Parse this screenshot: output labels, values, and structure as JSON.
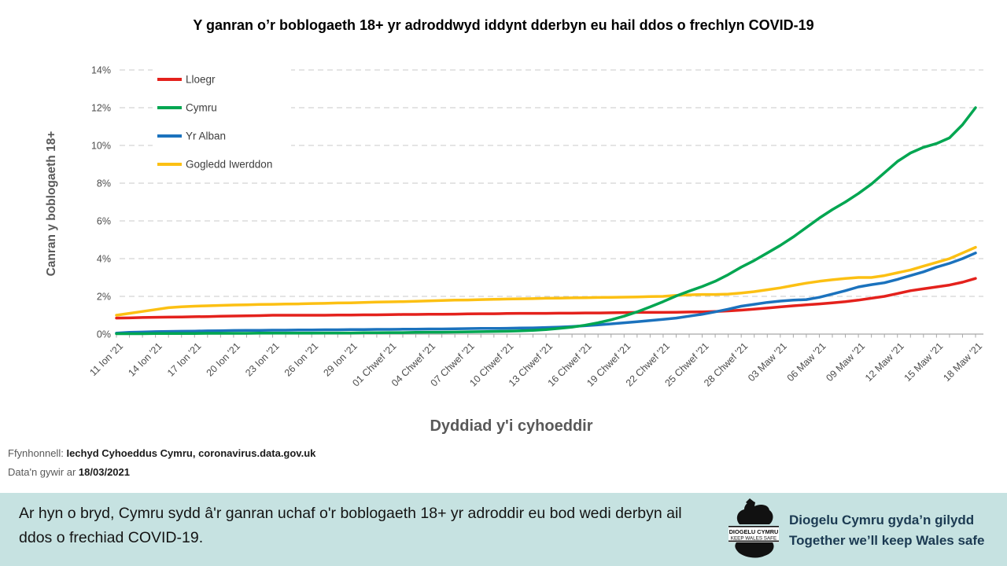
{
  "title": "Y ganran o’r boblogaeth 18+ yr adroddwyd iddynt dderbyn eu hail ddos o frechlyn COVID-19",
  "chart_data": {
    "type": "line",
    "title": "Y ganran o’r boblogaeth 18+ yr adroddwyd iddynt dderbyn eu hail ddos o frechlyn COVID-19",
    "xlabel": "Dyddiad y'i cyhoeddir",
    "ylabel": "Canran y boblogaeth 18+",
    "ylim": [
      0,
      14
    ],
    "ytick_labels": [
      "0%",
      "2%",
      "4%",
      "6%",
      "8%",
      "10%",
      "12%",
      "14%"
    ],
    "grid": "horizontal-dashed",
    "legend_position": "top-left-inside",
    "x_points_per_label": 3,
    "x_tick_labels": [
      "11 Ion '21",
      "14 Ion '21",
      "17 Ion '21",
      "20 Ion '21",
      "23 Ion '21",
      "26 Ion '21",
      "29 Ion '21",
      "01 Chwef '21",
      "04 Chwef '21",
      "07 Chwef '21",
      "10 Chwef '21",
      "13 Chwef '21",
      "16 Chwef '21",
      "19 Chwef '21",
      "22 Chwef '21",
      "25 Chwef '21",
      "28 Chwef '21",
      "03 Maw '21",
      "06 Maw '21",
      "09 Maw '21",
      "12 Maw '21",
      "15 Maw '21",
      "18 Maw '21"
    ],
    "series": [
      {
        "name": "Lloegr",
        "color": "#e4211c",
        "values": [
          0.85,
          0.86,
          0.88,
          0.89,
          0.9,
          0.91,
          0.92,
          0.93,
          0.95,
          0.96,
          0.97,
          0.98,
          1.0,
          1.0,
          1.0,
          1.0,
          1.0,
          1.01,
          1.01,
          1.02,
          1.02,
          1.03,
          1.04,
          1.04,
          1.05,
          1.05,
          1.06,
          1.07,
          1.08,
          1.08,
          1.09,
          1.1,
          1.1,
          1.1,
          1.11,
          1.11,
          1.12,
          1.12,
          1.13,
          1.14,
          1.15,
          1.15,
          1.15,
          1.16,
          1.17,
          1.18,
          1.2,
          1.23,
          1.27,
          1.32,
          1.38,
          1.44,
          1.5,
          1.55,
          1.6,
          1.66,
          1.72,
          1.8,
          1.9,
          2.0,
          2.15,
          2.3,
          2.4,
          2.5,
          2.6,
          2.75,
          2.95
        ]
      },
      {
        "name": "Cymru",
        "color": "#00a651",
        "values": [
          0.02,
          0.02,
          0.02,
          0.03,
          0.03,
          0.03,
          0.03,
          0.04,
          0.04,
          0.04,
          0.04,
          0.05,
          0.05,
          0.05,
          0.05,
          0.05,
          0.06,
          0.06,
          0.06,
          0.07,
          0.07,
          0.08,
          0.08,
          0.09,
          0.1,
          0.1,
          0.11,
          0.12,
          0.13,
          0.14,
          0.15,
          0.17,
          0.2,
          0.24,
          0.3,
          0.37,
          0.47,
          0.6,
          0.76,
          0.95,
          1.18,
          1.44,
          1.72,
          2.02,
          2.28,
          2.52,
          2.8,
          3.15,
          3.55,
          3.9,
          4.3,
          4.7,
          5.15,
          5.65,
          6.15,
          6.6,
          7.0,
          7.45,
          7.95,
          8.55,
          9.15,
          9.6,
          9.9,
          10.1,
          10.4,
          11.1,
          12.0
        ]
      },
      {
        "name": "Yr Alban",
        "color": "#1b72bd",
        "values": [
          0.05,
          0.09,
          0.11,
          0.13,
          0.14,
          0.15,
          0.16,
          0.17,
          0.18,
          0.19,
          0.2,
          0.2,
          0.21,
          0.21,
          0.22,
          0.22,
          0.23,
          0.23,
          0.24,
          0.24,
          0.25,
          0.25,
          0.26,
          0.26,
          0.27,
          0.27,
          0.28,
          0.29,
          0.3,
          0.3,
          0.31,
          0.32,
          0.33,
          0.35,
          0.37,
          0.4,
          0.44,
          0.49,
          0.54,
          0.6,
          0.66,
          0.72,
          0.78,
          0.85,
          0.95,
          1.05,
          1.18,
          1.32,
          1.48,
          1.58,
          1.68,
          1.75,
          1.8,
          1.83,
          1.95,
          2.12,
          2.3,
          2.5,
          2.62,
          2.72,
          2.9,
          3.1,
          3.3,
          3.55,
          3.75,
          4.0,
          4.3
        ]
      },
      {
        "name": "Gogledd Iwerddon",
        "color": "#fcc013",
        "values": [
          1.0,
          1.1,
          1.2,
          1.3,
          1.4,
          1.45,
          1.48,
          1.5,
          1.52,
          1.54,
          1.55,
          1.57,
          1.58,
          1.59,
          1.6,
          1.62,
          1.63,
          1.65,
          1.66,
          1.68,
          1.7,
          1.71,
          1.72,
          1.74,
          1.76,
          1.78,
          1.8,
          1.81,
          1.83,
          1.84,
          1.86,
          1.87,
          1.88,
          1.9,
          1.91,
          1.92,
          1.93,
          1.94,
          1.95,
          1.96,
          1.97,
          1.99,
          2.0,
          2.05,
          2.08,
          2.1,
          2.1,
          2.12,
          2.18,
          2.25,
          2.35,
          2.45,
          2.58,
          2.7,
          2.8,
          2.88,
          2.95,
          3.0,
          3.0,
          3.1,
          3.25,
          3.4,
          3.6,
          3.8,
          4.0,
          4.3,
          4.6
        ]
      }
    ]
  },
  "source": {
    "label": "Ffynhonnell:",
    "value": "Iechyd Cyhoeddus Cymru,",
    "link": "coronavirus.data.gov.uk",
    "updated_label": "Data'n gywir ar",
    "updated_date": "18/03/2021"
  },
  "banner": {
    "text": "Ar hyn o bryd, Cymru sydd â'r ganran uchaf o'r boblogaeth 18+ yr adroddir eu bod wedi derbyn ail ddos o frechiad COVID-19.",
    "logo": {
      "line1": "DIOGELU CYMRU",
      "line2": "KEEP WALES SAFE"
    },
    "tagline1": "Diogelu Cymru gyda’n gilydd",
    "tagline2": "Together we’ll keep Wales safe"
  }
}
